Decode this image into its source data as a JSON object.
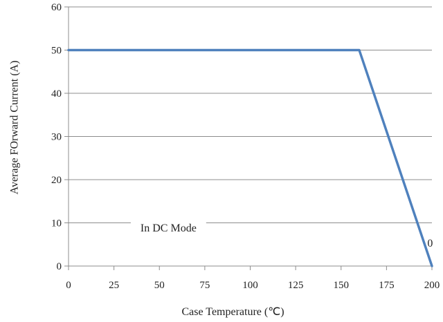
{
  "chart_data": {
    "type": "line",
    "title": "",
    "xlabel": "Case Temperature (℃)",
    "ylabel": "Average FOrward Current (A)",
    "xlim": [
      0,
      200
    ],
    "ylim": [
      0,
      60
    ],
    "xticks": [
      0,
      25,
      50,
      75,
      100,
      125,
      150,
      175,
      200
    ],
    "yticks": [
      0,
      10,
      20,
      30,
      40,
      50,
      60
    ],
    "grid": "horizontal",
    "series": [
      {
        "color": "#4f81bd",
        "x": [
          0,
          160,
          200
        ],
        "y": [
          50,
          50,
          0
        ]
      }
    ],
    "annotations": [
      {
        "text": "In DC Mode",
        "x": 55,
        "y": 8
      },
      {
        "text": "0",
        "x": 199,
        "y": 4.5
      }
    ]
  }
}
